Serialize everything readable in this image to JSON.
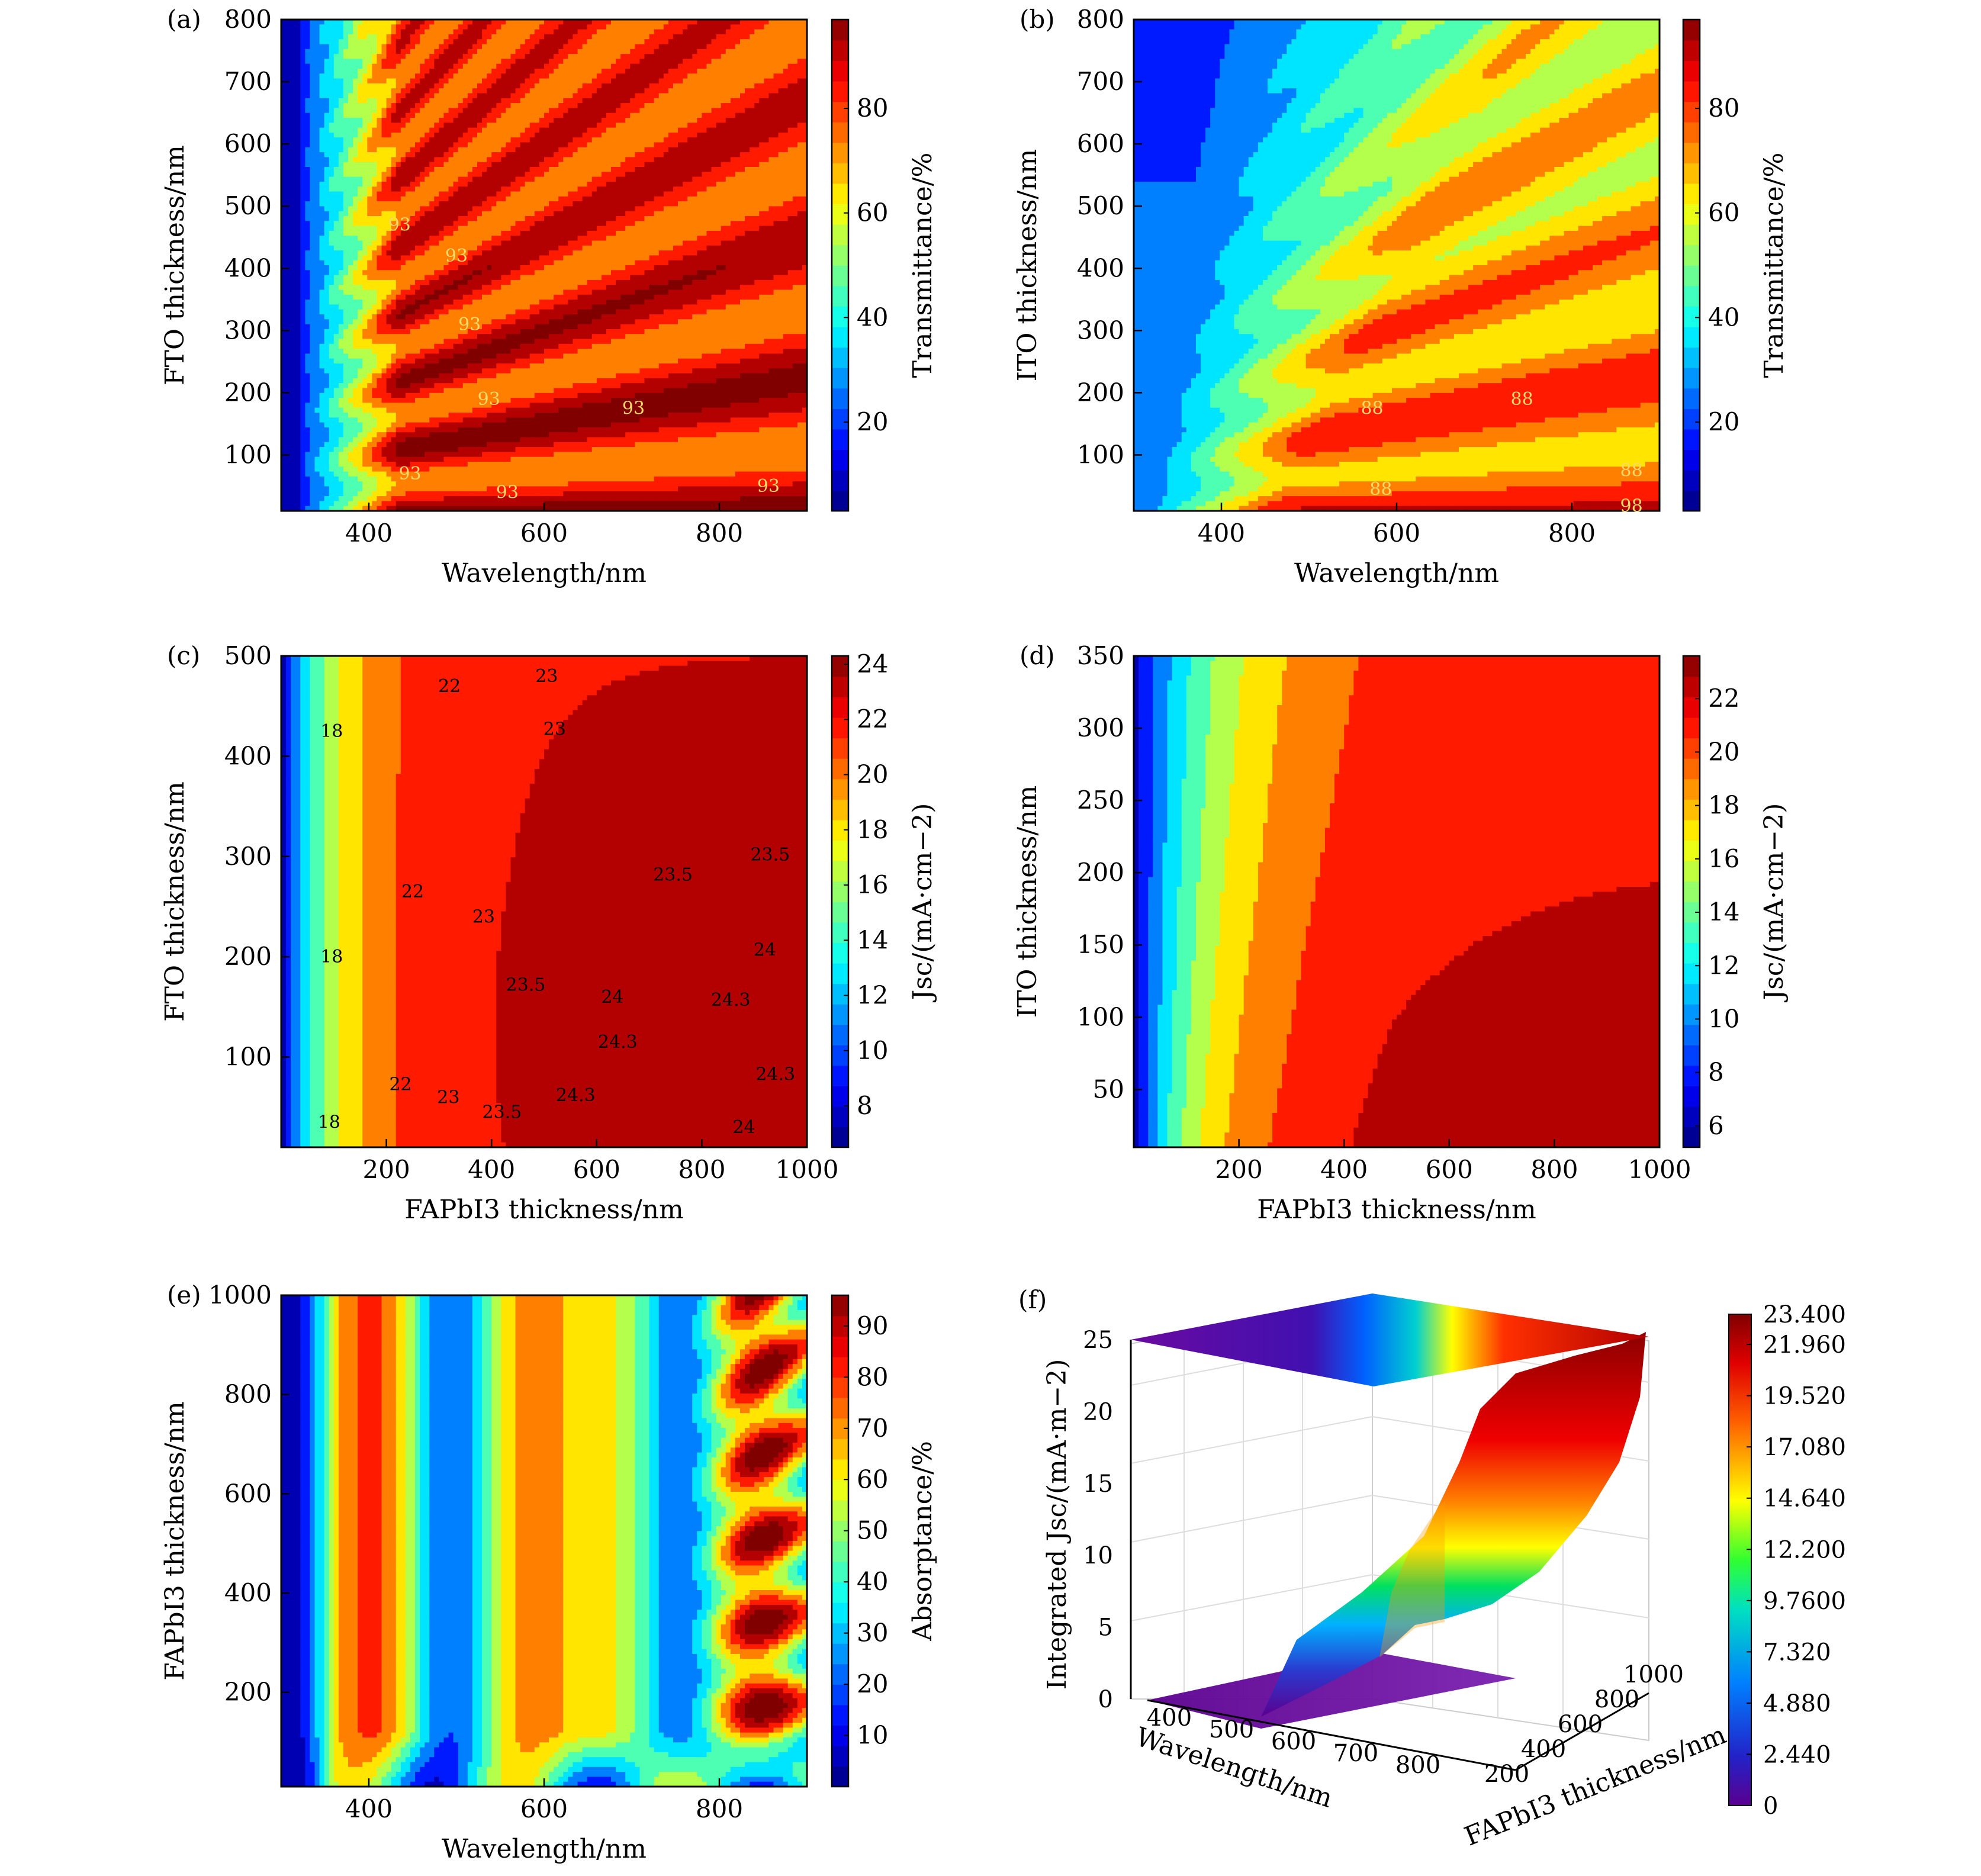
{
  "chart_data": [
    {
      "panel": "a",
      "panel_label": "(a)",
      "type": "heatmap",
      "xlabel": "Wavelength/nm",
      "ylabel": "FTO thickness/nm",
      "colorbar_label": "Transmittance/%",
      "xlim": [
        300,
        900
      ],
      "ylim": [
        10,
        800
      ],
      "xticks": [
        "400",
        "600",
        "800"
      ],
      "yticks": [
        "100",
        "200",
        "300",
        "400",
        "500",
        "600",
        "700",
        "800"
      ],
      "clim": [
        3,
        97
      ],
      "cticks": [
        "20",
        "40",
        "60",
        "80"
      ],
      "colormap": "jet",
      "contour_labels": [
        {
          "text": "93",
          "x": 435,
          "y": 470
        },
        {
          "text": "93",
          "x": 500,
          "y": 420
        },
        {
          "text": "93",
          "x": 515,
          "y": 310
        },
        {
          "text": "93",
          "x": 537,
          "y": 190
        },
        {
          "text": "93",
          "x": 702,
          "y": 175
        },
        {
          "text": "93",
          "x": 447,
          "y": 70
        },
        {
          "text": "93",
          "x": 558,
          "y": 40
        },
        {
          "text": "93",
          "x": 856,
          "y": 50
        }
      ]
    },
    {
      "panel": "b",
      "panel_label": "(b)",
      "type": "heatmap",
      "xlabel": "Wavelength/nm",
      "ylabel": "ITO thickness/nm",
      "colorbar_label": "Transmittance/%",
      "xlim": [
        300,
        900
      ],
      "ylim": [
        10,
        800
      ],
      "xticks": [
        "400",
        "600",
        "800"
      ],
      "yticks": [
        "100",
        "200",
        "300",
        "400",
        "500",
        "600",
        "700",
        "800"
      ],
      "clim": [
        3,
        97
      ],
      "cticks": [
        "20",
        "40",
        "60",
        "80"
      ],
      "colormap": "jet",
      "contour_labels": [
        {
          "text": "88",
          "x": 572,
          "y": 175
        },
        {
          "text": "88",
          "x": 743,
          "y": 190
        },
        {
          "text": "88",
          "x": 582,
          "y": 45
        },
        {
          "text": "88",
          "x": 868,
          "y": 75
        },
        {
          "text": "98",
          "x": 868,
          "y": 18
        }
      ]
    },
    {
      "panel": "c",
      "panel_label": "(c)",
      "type": "heatmap",
      "xlabel": "FAPbI3 thickness/nm",
      "ylabel": "FTO thickness/nm",
      "colorbar_label": "Jsc/(mA·cm−2)",
      "xlim": [
        0,
        1000
      ],
      "ylim": [
        10,
        500
      ],
      "xticks": [
        "200",
        "400",
        "600",
        "800",
        "1000"
      ],
      "yticks": [
        "100",
        "200",
        "300",
        "400",
        "500"
      ],
      "clim": [
        6.5,
        24.3
      ],
      "cticks": [
        "8",
        "10",
        "12",
        "14",
        "16",
        "18",
        "20",
        "22",
        "24"
      ],
      "colormap": "jet",
      "contour_labels": [
        {
          "text": "18",
          "x": 96,
          "y": 425
        },
        {
          "text": "18",
          "x": 96,
          "y": 200
        },
        {
          "text": "18",
          "x": 91,
          "y": 35
        },
        {
          "text": "22",
          "x": 320,
          "y": 470
        },
        {
          "text": "22",
          "x": 250,
          "y": 265
        },
        {
          "text": "22",
          "x": 227,
          "y": 73
        },
        {
          "text": "23",
          "x": 505,
          "y": 480
        },
        {
          "text": "23",
          "x": 520,
          "y": 427
        },
        {
          "text": "23",
          "x": 385,
          "y": 240
        },
        {
          "text": "23",
          "x": 318,
          "y": 60
        },
        {
          "text": "23.5",
          "x": 930,
          "y": 302
        },
        {
          "text": "23.5",
          "x": 745,
          "y": 282
        },
        {
          "text": "23.5",
          "x": 465,
          "y": 172
        },
        {
          "text": "23.5",
          "x": 420,
          "y": 45
        },
        {
          "text": "24",
          "x": 920,
          "y": 207
        },
        {
          "text": "24",
          "x": 630,
          "y": 160
        },
        {
          "text": "24",
          "x": 880,
          "y": 30
        },
        {
          "text": "24.3",
          "x": 855,
          "y": 157
        },
        {
          "text": "24.3",
          "x": 640,
          "y": 115
        },
        {
          "text": "24.3",
          "x": 940,
          "y": 83
        },
        {
          "text": "24.3",
          "x": 560,
          "y": 62
        }
      ]
    },
    {
      "panel": "d",
      "panel_label": "(d)",
      "type": "heatmap",
      "xlabel": "FAPbI3 thickness/nm",
      "ylabel": "ITO thickness/nm",
      "colorbar_label": "Jsc/(mA·cm−2)",
      "xlim": [
        0,
        1000
      ],
      "ylim": [
        10,
        350
      ],
      "xticks": [
        "200",
        "400",
        "600",
        "800",
        "1000"
      ],
      "yticks": [
        "50",
        "100",
        "150",
        "200",
        "250",
        "300",
        "350"
      ],
      "clim": [
        5.2,
        23.6
      ],
      "cticks": [
        "6",
        "8",
        "10",
        "12",
        "14",
        "16",
        "18",
        "20",
        "22"
      ],
      "colormap": "jet"
    },
    {
      "panel": "e",
      "panel_label": "(e)",
      "type": "heatmap",
      "xlabel": "Wavelength/nm",
      "ylabel": "FAPbI3 thickness/nm",
      "colorbar_label": "Absorptance/%",
      "xlim": [
        300,
        900
      ],
      "ylim": [
        10,
        1000
      ],
      "xticks": [
        "400",
        "600",
        "800"
      ],
      "yticks": [
        "200",
        "400",
        "600",
        "800",
        "1000"
      ],
      "clim": [
        0,
        96
      ],
      "cticks": [
        "10",
        "20",
        "30",
        "40",
        "50",
        "60",
        "70",
        "80",
        "90"
      ],
      "colormap": "jet"
    },
    {
      "panel": "f",
      "panel_label": "(f)",
      "type": "surface3d",
      "xlabel": "Wavelength/nm",
      "ylabel": "FAPbI3 thickness/nm",
      "zlabel": "Integrated Jsc/(mA·m−2)",
      "xticks": [
        "400",
        "500",
        "600",
        "700",
        "800"
      ],
      "yticks": [
        "200",
        "400",
        "600",
        "800",
        "1000"
      ],
      "zticks": [
        "0",
        "5",
        "10",
        "15",
        "20",
        "25"
      ],
      "zlim": [
        0,
        25
      ],
      "clim": [
        0,
        23.4
      ],
      "cticks": [
        "0",
        "2.440",
        "4.880",
        "7.320",
        "9.7600",
        "12.200",
        "14.640",
        "17.080",
        "19.520",
        "21.960",
        "23.400"
      ],
      "colormap": "jet"
    }
  ]
}
